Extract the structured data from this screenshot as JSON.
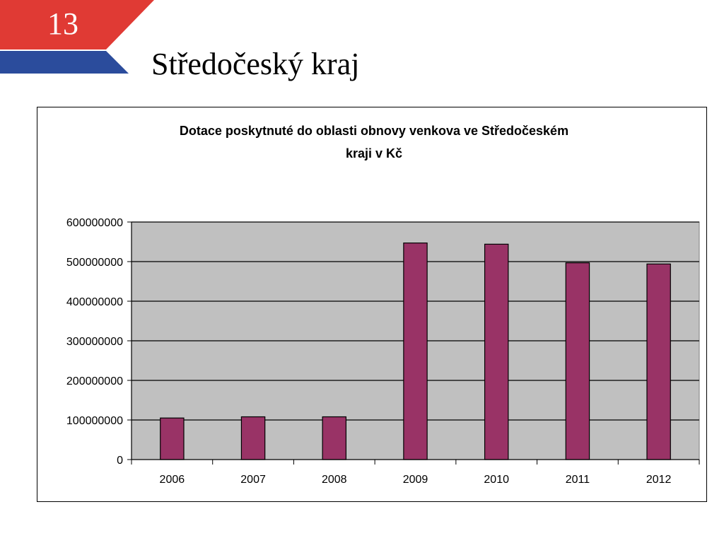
{
  "slide": {
    "number": "13",
    "title": "Středočeský kraj",
    "colors": {
      "banner_red": "#e03a34",
      "banner_blue": "#2b4c9c"
    }
  },
  "chart_data": {
    "type": "bar",
    "title_lines": [
      "Dotace poskytnuté do oblasti obnovy venkova ve Středočeském",
      "kraji v Kč"
    ],
    "categories": [
      "2006",
      "2007",
      "2008",
      "2009",
      "2010",
      "2011",
      "2012"
    ],
    "values": [
      105000000,
      108000000,
      108000000,
      547000000,
      544000000,
      497000000,
      494000000
    ],
    "ylim": [
      0,
      600000000
    ],
    "yticks": [
      "0",
      "100000000",
      "200000000",
      "300000000",
      "400000000",
      "500000000",
      "600000000"
    ],
    "xlabel": "",
    "ylabel": "",
    "grid": true,
    "legend": "none",
    "colors": {
      "bar": "#993366",
      "plot_background": "#c0c0c0"
    }
  }
}
